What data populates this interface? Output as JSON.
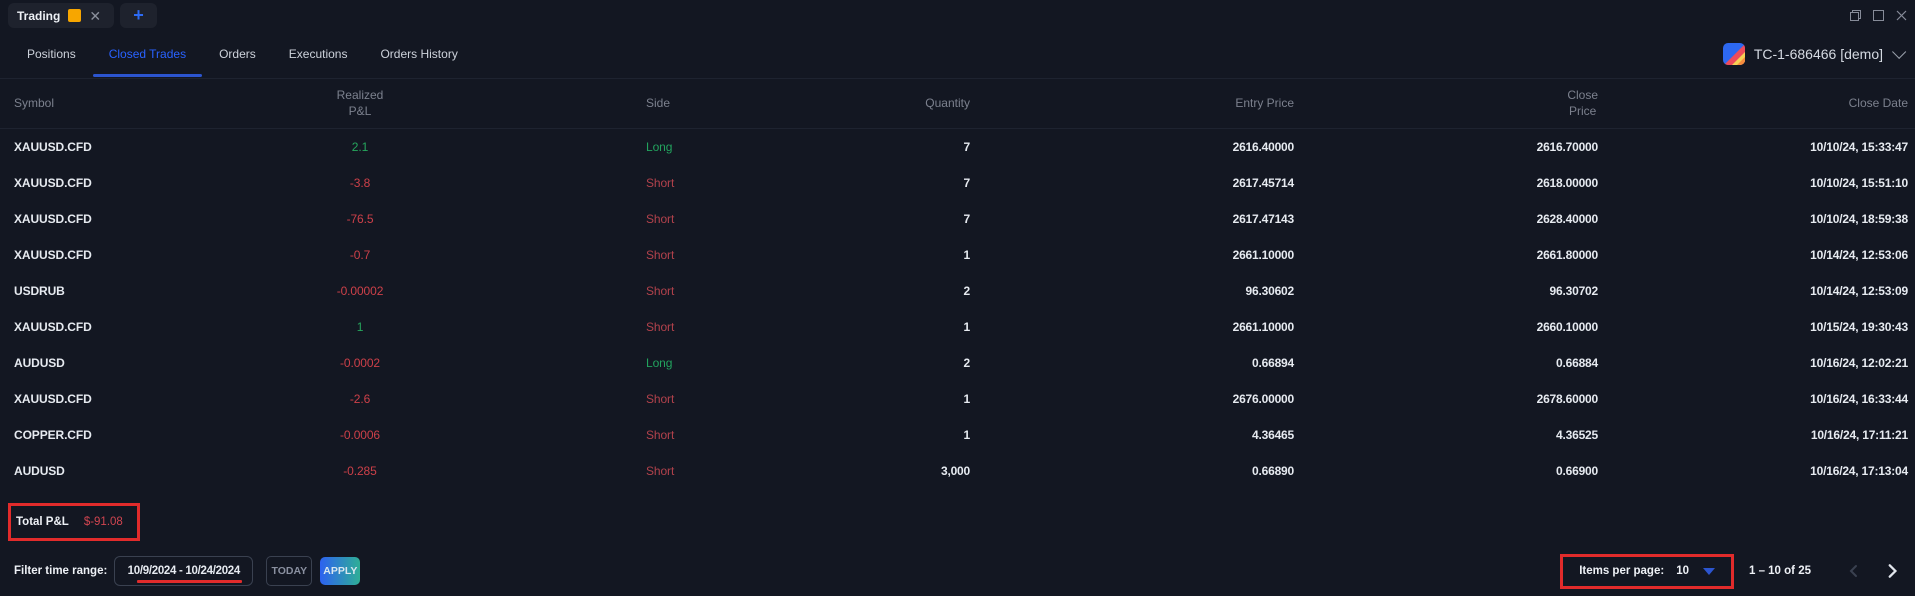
{
  "topbar": {
    "workspace_tab": {
      "title": "Trading",
      "accent_color": "#f7a600"
    },
    "add_tab_icon": "+",
    "window_controls": [
      "restore",
      "maximize",
      "close"
    ]
  },
  "tabs": [
    {
      "label": "Positions",
      "active": false
    },
    {
      "label": "Closed Trades",
      "active": true
    },
    {
      "label": "Orders",
      "active": false
    },
    {
      "label": "Executions",
      "active": false
    },
    {
      "label": "Orders History",
      "active": false
    }
  ],
  "account_selector": {
    "label": "TC-1-686466 [demo]"
  },
  "table": {
    "headers": [
      {
        "label": "Symbol"
      },
      {
        "label": "Realized\nP&L"
      },
      {
        "label": "Side"
      },
      {
        "label": "Quantity"
      },
      {
        "label": "Entry Price"
      },
      {
        "label": "Close\nPrice"
      },
      {
        "label": "Close Date"
      }
    ],
    "rows": [
      {
        "symbol": "XAUUSD.CFD",
        "pnl": "2.1",
        "pnl_dir": "pos",
        "side": "Long",
        "side_dir": "pos",
        "quantity": "7",
        "entry_price": "2616.40000",
        "close_price": "2616.70000",
        "close_date": "10/10/24, 15:33:47"
      },
      {
        "symbol": "XAUUSD.CFD",
        "pnl": "-3.8",
        "pnl_dir": "neg",
        "side": "Short",
        "side_dir": "neg",
        "quantity": "7",
        "entry_price": "2617.45714",
        "close_price": "2618.00000",
        "close_date": "10/10/24, 15:51:10"
      },
      {
        "symbol": "XAUUSD.CFD",
        "pnl": "-76.5",
        "pnl_dir": "neg",
        "side": "Short",
        "side_dir": "neg",
        "quantity": "7",
        "entry_price": "2617.47143",
        "close_price": "2628.40000",
        "close_date": "10/10/24, 18:59:38"
      },
      {
        "symbol": "XAUUSD.CFD",
        "pnl": "-0.7",
        "pnl_dir": "neg",
        "side": "Short",
        "side_dir": "neg",
        "quantity": "1",
        "entry_price": "2661.10000",
        "close_price": "2661.80000",
        "close_date": "10/14/24, 12:53:06"
      },
      {
        "symbol": "USDRUB",
        "pnl": "-0.00002",
        "pnl_dir": "neg",
        "side": "Short",
        "side_dir": "neg",
        "quantity": "2",
        "entry_price": "96.30602",
        "close_price": "96.30702",
        "close_date": "10/14/24, 12:53:09"
      },
      {
        "symbol": "XAUUSD.CFD",
        "pnl": "1",
        "pnl_dir": "pos",
        "side": "Short",
        "side_dir": "neg",
        "quantity": "1",
        "entry_price": "2661.10000",
        "close_price": "2660.10000",
        "close_date": "10/15/24, 19:30:43"
      },
      {
        "symbol": "AUDUSD",
        "pnl": "-0.0002",
        "pnl_dir": "neg",
        "side": "Long",
        "side_dir": "pos",
        "quantity": "2",
        "entry_price": "0.66894",
        "close_price": "0.66884",
        "close_date": "10/16/24, 12:02:21"
      },
      {
        "symbol": "XAUUSD.CFD",
        "pnl": "-2.6",
        "pnl_dir": "neg",
        "side": "Short",
        "side_dir": "neg",
        "quantity": "1",
        "entry_price": "2676.00000",
        "close_price": "2678.60000",
        "close_date": "10/16/24, 16:33:44"
      },
      {
        "symbol": "COPPER.CFD",
        "pnl": "-0.0006",
        "pnl_dir": "neg",
        "side": "Short",
        "side_dir": "neg",
        "quantity": "1",
        "entry_price": "4.36465",
        "close_price": "4.36525",
        "close_date": "10/16/24, 17:11:21"
      },
      {
        "symbol": "AUDUSD",
        "pnl": "-0.285",
        "pnl_dir": "neg",
        "side": "Short",
        "side_dir": "neg",
        "quantity": "3,000",
        "entry_price": "0.66890",
        "close_price": "0.66900",
        "close_date": "10/16/24, 17:13:04"
      }
    ]
  },
  "summary": {
    "label": "Total P&L",
    "value": "$-91.08"
  },
  "filter_bar": {
    "label": "Filter time range:",
    "date_range": "10/9/2024 - 10/24/2024",
    "today": "TODAY",
    "apply": "APPLY"
  },
  "pagination": {
    "items_per_page_label": "Items per page:",
    "items_per_page": "10",
    "range": "1 – 10 of 25"
  },
  "colors": {
    "background": "#131722",
    "accent_blue": "#2962ff",
    "positive_green": "#26a65d",
    "negative_red": "#cc4049",
    "annotation_red": "#e12b2b",
    "workspace_accent": "#f7a600"
  }
}
